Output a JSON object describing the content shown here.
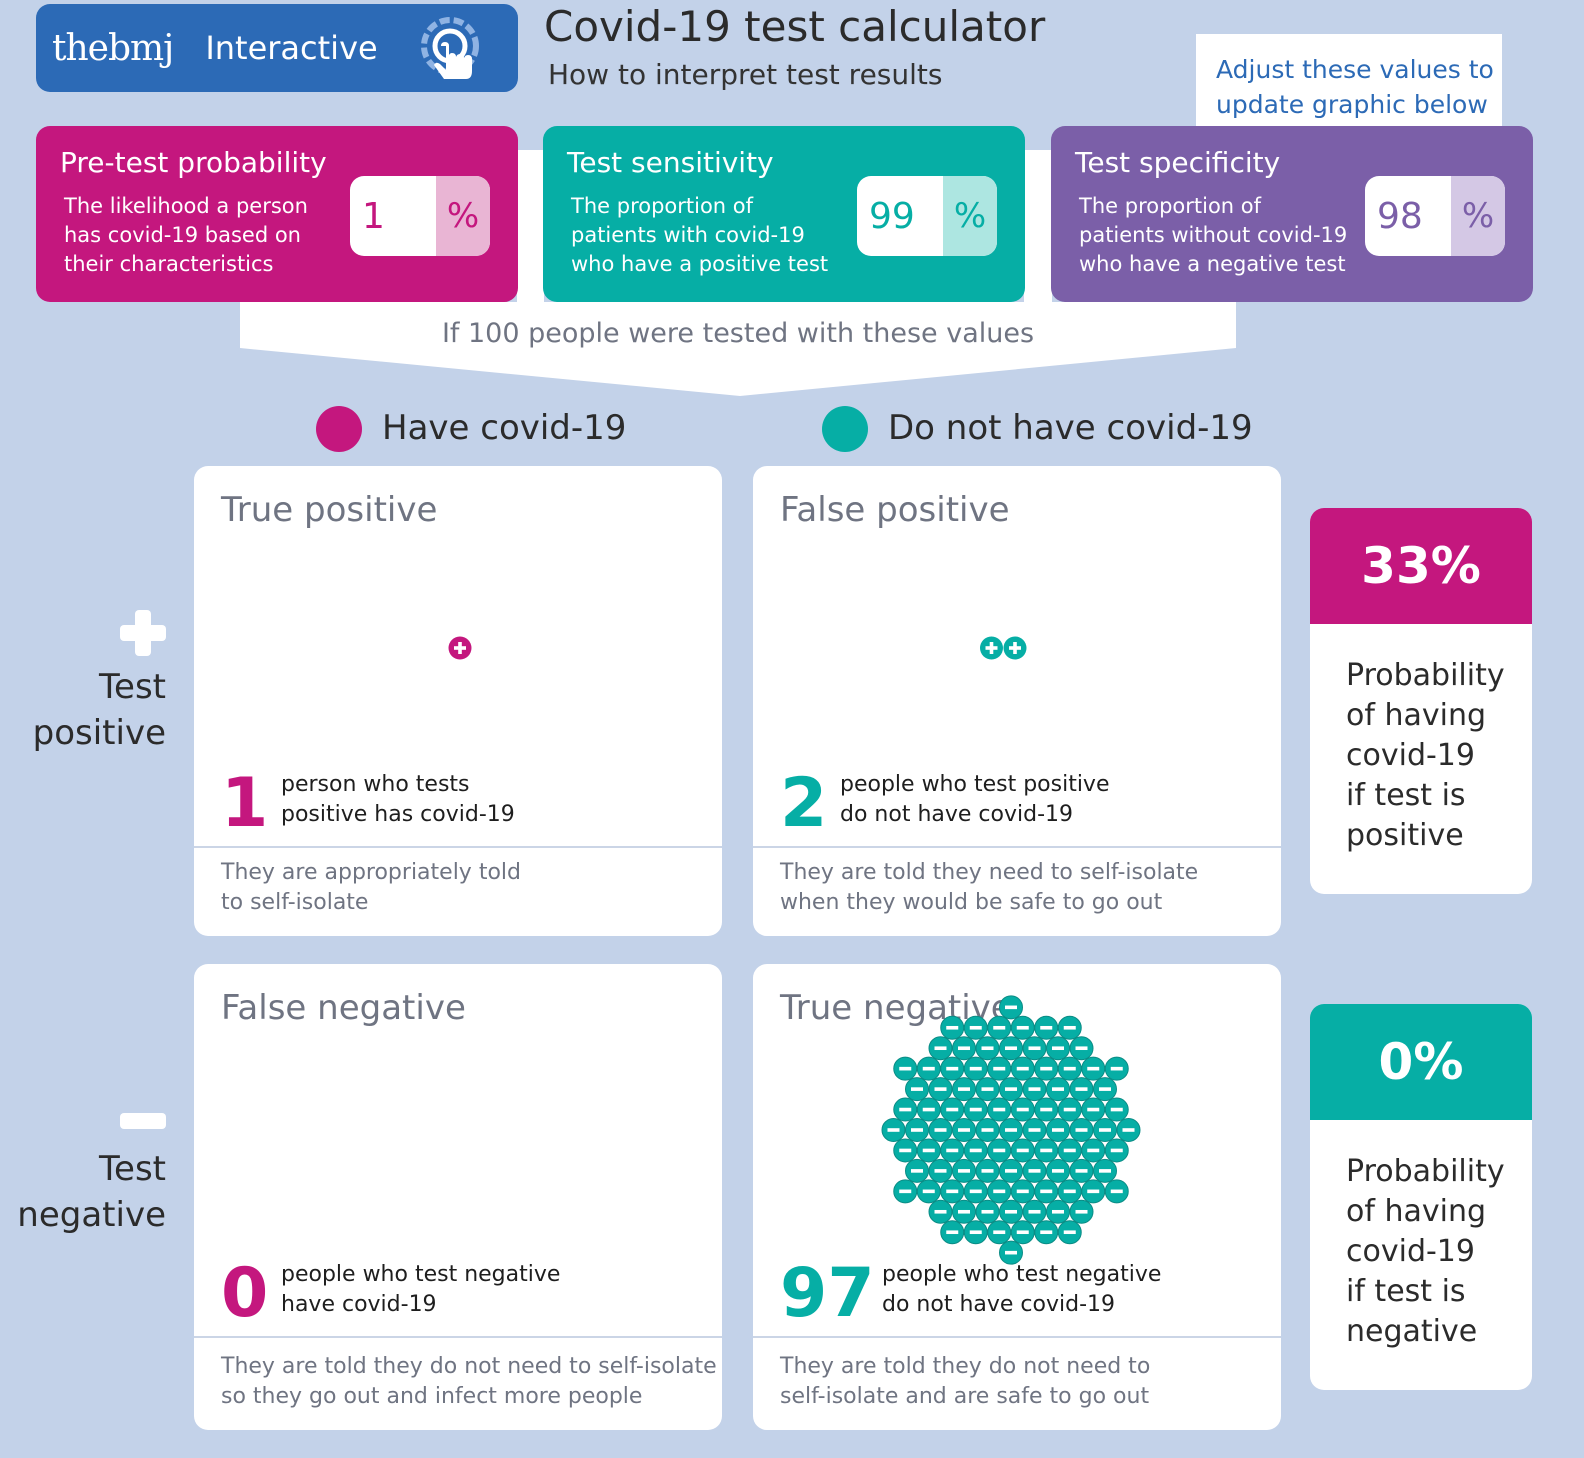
{
  "header": {
    "brand_logo": "thebmj",
    "brand_label": "Interactive",
    "title": "Covid-19 test calculator",
    "subtitle": "How to interpret test results",
    "tooltip_line1": "Adjust these values to",
    "tooltip_line2": "update graphic below"
  },
  "inputs": {
    "pretest": {
      "title": "Pre-test probability",
      "desc1": "The likelihood a person",
      "desc2": "has covid-19 based on",
      "desc3": "their characteristics",
      "value": "1",
      "unit": "%"
    },
    "sensitivity": {
      "title": "Test sensitivity",
      "desc1": "The proportion of",
      "desc2": "patients with covid-19",
      "desc3": "who have a positive test",
      "value": "99",
      "unit": "%"
    },
    "specificity": {
      "title": "Test specificity",
      "desc1": "The proportion of",
      "desc2": "patients without covid-19",
      "desc3": "who have a negative test",
      "value": "98",
      "unit": "%"
    }
  },
  "funnel_text": "If 100 people were tested with these values",
  "legend": {
    "have": "Have covid-19",
    "not_have": "Do not have covid-19"
  },
  "row_labels": {
    "positive_l1": "Test",
    "positive_l2": "positive",
    "negative_l1": "Test",
    "negative_l2": "negative"
  },
  "quadrants": {
    "true_positive": {
      "title": "True positive",
      "count": 1,
      "count_label": "1",
      "text1": "person who tests",
      "text2": "positive has covid-19",
      "foot1": "They are appropriately told",
      "foot2": "to self-isolate"
    },
    "false_positive": {
      "title": "False positive",
      "count": 2,
      "count_label": "2",
      "text1": "people who test positive",
      "text2": "do not have covid-19",
      "foot1": "They are told they need to self-isolate",
      "foot2": "when they would be safe to go out"
    },
    "false_negative": {
      "title": "False negative",
      "count": 0,
      "count_label": "0",
      "text1": "people who test negative",
      "text2": "have covid-19",
      "foot1": "They are told they do not need to self-isolate",
      "foot2": "so they go out and infect more people"
    },
    "true_negative": {
      "title": "True negative",
      "count": 97,
      "count_label": "97",
      "text1": "people who test negative",
      "text2": "do not have covid-19",
      "foot1": "They are told they do not need to",
      "foot2": "self-isolate and are safe to go out"
    }
  },
  "probabilities": {
    "positive": {
      "value": "33%",
      "l1": "Probability",
      "l2": "of having",
      "l3": "covid-19",
      "l4": "if test is",
      "l5": "positive"
    },
    "negative": {
      "value": "0%",
      "l1": "Probability",
      "l2": "of having",
      "l3": "covid-19",
      "l4": "if test is",
      "l5": "negative"
    }
  },
  "colors": {
    "pink": "#c4177e",
    "teal": "#06aea5",
    "purple": "#7b5fa8",
    "blue": "#2c6ab6",
    "background": "#c3d2e9"
  }
}
